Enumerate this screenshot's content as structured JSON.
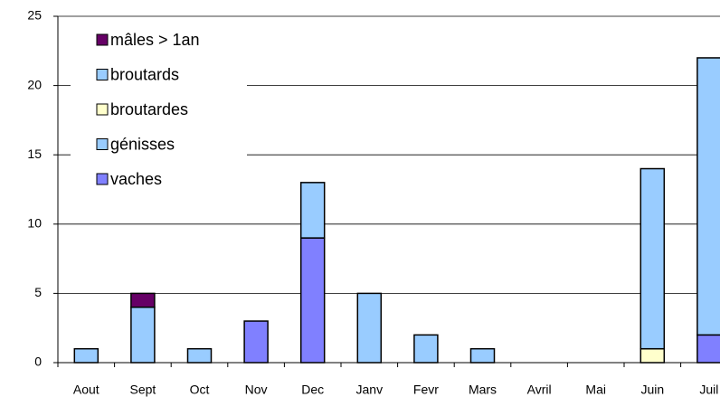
{
  "chart_data": {
    "type": "bar",
    "stacked": true,
    "categories": [
      "Aout",
      "Sept",
      "Oct",
      "Nov",
      "Dec",
      "Janv",
      "Fevr",
      "Mars",
      "Avril",
      "Mai",
      "Juin",
      "Juil"
    ],
    "series": [
      {
        "name": "vaches",
        "color": "#8080ff",
        "values": [
          0,
          0,
          0,
          3,
          9,
          0,
          0,
          0,
          0,
          0,
          0,
          2
        ]
      },
      {
        "name": "génisses",
        "color": "#99ccff",
        "values": [
          1,
          4,
          1,
          0,
          4,
          5,
          2,
          1,
          0,
          0,
          0,
          20
        ]
      },
      {
        "name": "broutardes",
        "color": "#ffffcc",
        "values": [
          0,
          0,
          0,
          0,
          0,
          0,
          0,
          0,
          0,
          0,
          1,
          0
        ]
      },
      {
        "name": "broutards",
        "color": "#99ccff",
        "values": [
          0,
          0,
          0,
          0,
          0,
          0,
          0,
          0,
          0,
          0,
          13,
          0
        ]
      },
      {
        "name": "mâles > 1an",
        "color": "#660066",
        "values": [
          0,
          1,
          0,
          0,
          0,
          0,
          0,
          0,
          0,
          0,
          0,
          0
        ]
      }
    ],
    "ylim": [
      0,
      25
    ],
    "yticks": [
      0,
      5,
      10,
      15,
      20,
      25
    ],
    "grid": true,
    "legend": "upper left"
  }
}
